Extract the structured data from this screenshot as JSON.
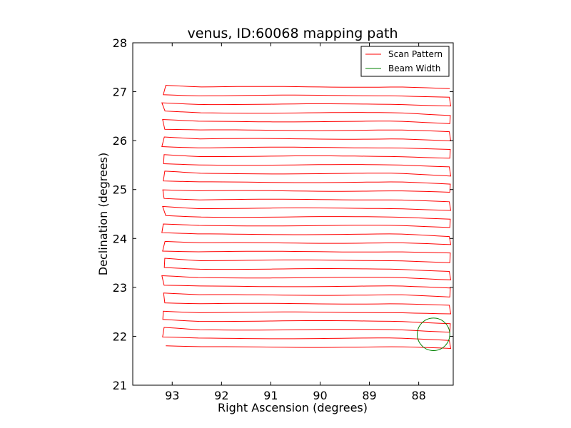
{
  "chart_data": {
    "type": "line",
    "title": "venus, ID:60068 mapping path",
    "xlabel": "Right Ascension (degrees)",
    "ylabel": "Declination (degrees)",
    "xlim": [
      93.8,
      87.3
    ],
    "ylim": [
      21,
      28
    ],
    "x_inverted": true,
    "xticks": [
      93,
      92,
      91,
      90,
      89,
      88
    ],
    "yticks": [
      21,
      22,
      23,
      24,
      25,
      26,
      27,
      28
    ],
    "grid": false,
    "legend_position": "top-right",
    "series": [
      {
        "name": "Scan Pattern",
        "color": "#ff0000",
        "kind": "raster-path",
        "x_left": 93.15,
        "x_right": 87.35,
        "rows_start": 21.78,
        "rows_end": 27.1,
        "rows_count": 31
      },
      {
        "name": "Beam Width",
        "color": "#008000",
        "kind": "circle",
        "center": [
          87.7,
          22.04
        ],
        "radius": 0.33
      }
    ]
  }
}
